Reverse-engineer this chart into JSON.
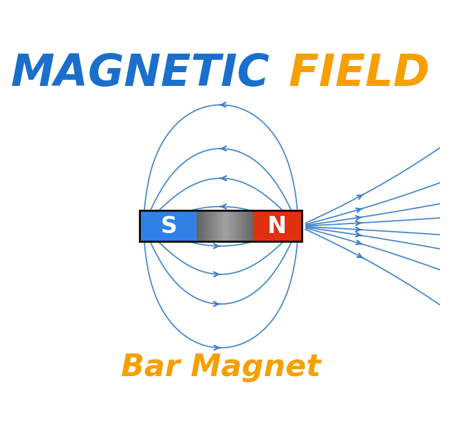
{
  "title1": "MAGNETIC",
  "title2": " FIELD",
  "title1_color": "#1a6fcc",
  "title2_color": "#f5a000",
  "subtitle": "Bar Magnet",
  "subtitle_color": "#f5a000",
  "bg_color": "#ffffff",
  "S_color": "#3080e8",
  "N_color": "#e03010",
  "middle_color_light": "#aaaaaa",
  "middle_color_dark": "#606060",
  "arrow_color": "#3878c8",
  "line_color": "#4488cc"
}
